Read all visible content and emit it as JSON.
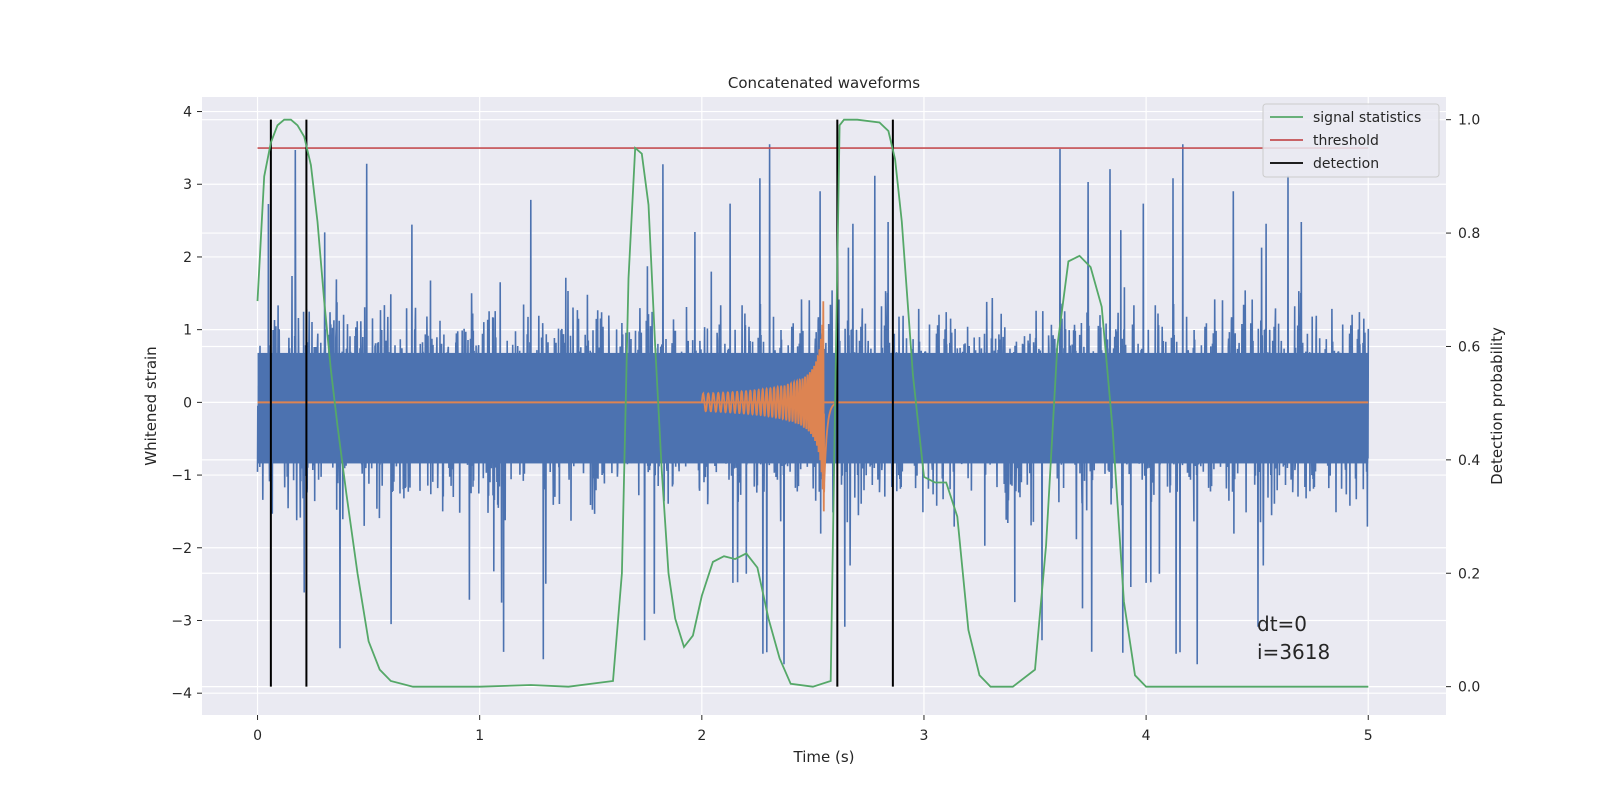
{
  "chart_data": {
    "type": "line",
    "title": "Concatenated waveforms",
    "xlabel": "Time (s)",
    "ylabel_left": "Whitened strain",
    "ylabel_right": "Detection probability",
    "xlim": [
      -0.25,
      5.35
    ],
    "ylim_left": [
      -4.3,
      4.2
    ],
    "ylim_right": [
      -0.05,
      1.04
    ],
    "xticks": [
      "0",
      "1",
      "2",
      "3",
      "4",
      "5"
    ],
    "xtick_values": [
      0,
      1,
      2,
      3,
      4,
      5
    ],
    "yticks_left": [
      "−4",
      "−3",
      "−2",
      "−1",
      "0",
      "1",
      "2",
      "3",
      "4"
    ],
    "ytick_left_values": [
      -4,
      -3,
      -2,
      -1,
      0,
      1,
      2,
      3,
      4
    ],
    "yticks_right": [
      "0.0",
      "0.2",
      "0.4",
      "0.6",
      "0.8",
      "1.0"
    ],
    "ytick_right_values": [
      0,
      0.2,
      0.4,
      0.6,
      0.8,
      1.0
    ],
    "grid": true,
    "legend_position": "top-right",
    "legend": [
      {
        "label": "signal statistics",
        "color": "#55a868"
      },
      {
        "label": "threshold",
        "color": "#c44e52"
      },
      {
        "label": "detection",
        "color": "#000000"
      }
    ],
    "noise": {
      "color": "#4c72b0",
      "x_range": [
        0,
        5
      ],
      "typical_amplitude": 0.8,
      "peak_max": 3.75,
      "peak_min": -3.9
    },
    "chirp": {
      "color": "#dd8452",
      "x_range": [
        2.0,
        2.6
      ],
      "peak_time": 2.55,
      "peak_amplitude_pos": 1.65,
      "peak_amplitude_neg": -1.5
    },
    "baseline": {
      "color": "#dd8452",
      "value": 0,
      "x_range": [
        0,
        5
      ]
    },
    "threshold": {
      "value": 0.95,
      "x_range": [
        0,
        5
      ]
    },
    "detections": [
      0.06,
      0.22,
      2.61,
      2.86
    ],
    "signal_statistics": {
      "x": [
        0,
        0.03,
        0.06,
        0.09,
        0.12,
        0.15,
        0.18,
        0.21,
        0.24,
        0.27,
        0.3,
        0.33,
        0.36,
        0.4,
        0.45,
        0.5,
        0.55,
        0.6,
        0.7,
        1.0,
        1.23,
        1.4,
        1.6,
        1.64,
        1.67,
        1.7,
        1.73,
        1.76,
        1.79,
        1.82,
        1.85,
        1.88,
        1.92,
        1.96,
        2.0,
        2.05,
        2.1,
        2.15,
        2.2,
        2.25,
        2.3,
        2.35,
        2.4,
        2.5,
        2.58,
        2.6,
        2.62,
        2.64,
        2.7,
        2.8,
        2.84,
        2.87,
        2.9,
        2.95,
        3.0,
        3.05,
        3.1,
        3.15,
        3.2,
        3.25,
        3.3,
        3.4,
        3.5,
        3.55,
        3.6,
        3.65,
        3.7,
        3.75,
        3.8,
        3.85,
        3.9,
        3.95,
        4.0,
        4.5,
        5.0
      ],
      "y": [
        0.68,
        0.9,
        0.96,
        0.99,
        1.0,
        1.0,
        0.99,
        0.97,
        0.92,
        0.82,
        0.68,
        0.56,
        0.46,
        0.34,
        0.2,
        0.08,
        0.03,
        0.01,
        0.0,
        0.0,
        0.003,
        0.0,
        0.01,
        0.2,
        0.72,
        0.95,
        0.94,
        0.85,
        0.6,
        0.38,
        0.2,
        0.12,
        0.07,
        0.09,
        0.16,
        0.22,
        0.23,
        0.225,
        0.235,
        0.21,
        0.12,
        0.05,
        0.005,
        0.0,
        0.01,
        0.5,
        0.99,
        1.0,
        1.0,
        0.995,
        0.98,
        0.93,
        0.82,
        0.55,
        0.37,
        0.36,
        0.36,
        0.3,
        0.1,
        0.02,
        0.0,
        0.0,
        0.03,
        0.25,
        0.6,
        0.75,
        0.76,
        0.74,
        0.67,
        0.45,
        0.15,
        0.02,
        0.0,
        0.0,
        0.0
      ]
    },
    "annotations": [
      "dt=0",
      "i=3618"
    ]
  }
}
